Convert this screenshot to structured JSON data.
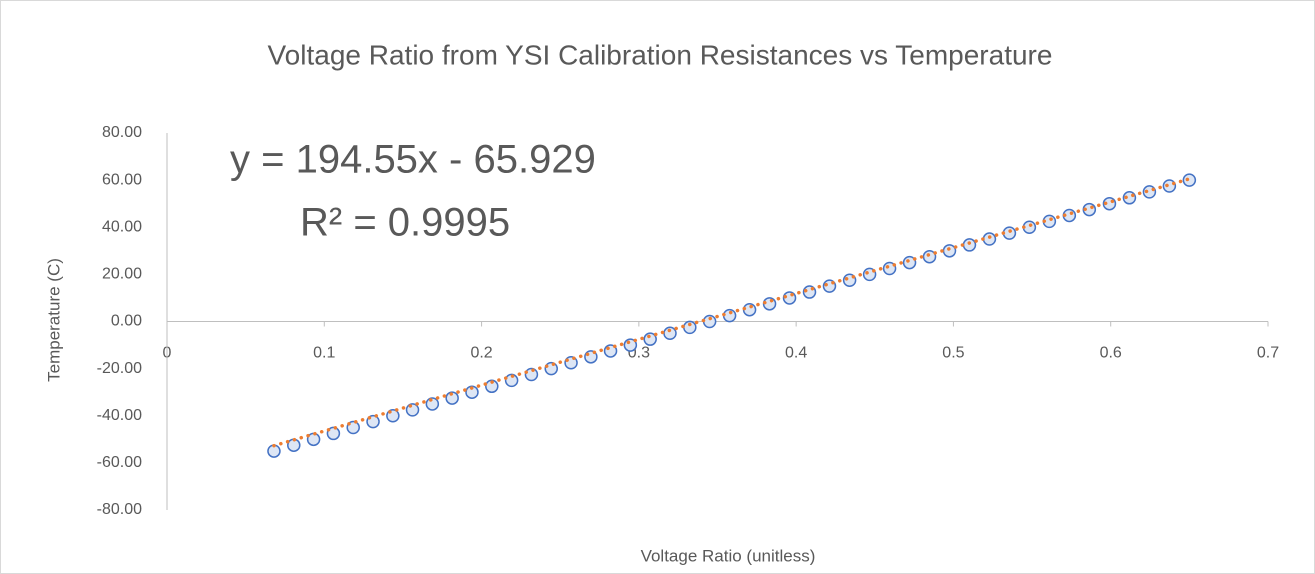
{
  "chart_data": {
    "type": "scatter",
    "title": "Voltage Ratio from YSI Calibration Resistances vs Temperature",
    "x_label": "Voltage Ratio (unitless)",
    "y_label": "Temperature (C)",
    "color": "#4472c4",
    "x": [
      0.068,
      0.0806,
      0.0932,
      0.1058,
      0.1184,
      0.131,
      0.1436,
      0.1561,
      0.1687,
      0.1813,
      0.1939,
      0.2065,
      0.2191,
      0.2317,
      0.2443,
      0.2569,
      0.2695,
      0.282,
      0.2946,
      0.3072,
      0.3198,
      0.3324,
      0.345,
      0.3577,
      0.3704,
      0.3831,
      0.3958,
      0.4085,
      0.4212,
      0.434,
      0.4467,
      0.4594,
      0.4721,
      0.4848,
      0.4975,
      0.5102,
      0.5229,
      0.5356,
      0.5483,
      0.561,
      0.5737,
      0.5864,
      0.5992,
      0.6119,
      0.6246,
      0.6373,
      0.65
    ],
    "values": [
      -55,
      -52.5,
      -50,
      -47.5,
      -45,
      -42.5,
      -40,
      -37.5,
      -35,
      -32.5,
      -30,
      -27.5,
      -25,
      -22.5,
      -20,
      -17.5,
      -15,
      -12.5,
      -10,
      -7.5,
      -5,
      -2.5,
      0,
      2.5,
      5,
      7.5,
      10,
      12.5,
      15,
      17.5,
      20,
      22.5,
      25,
      27.5,
      30,
      32.5,
      35,
      37.5,
      40,
      42.5,
      45,
      47.5,
      50,
      52.5,
      55,
      57.5,
      60
    ],
    "trendline": {
      "color": "#ed7d31",
      "slope": 194.55,
      "intercept": -65.929,
      "equation": "y = 194.55x - 65.929",
      "r_squared": "R² = 0.9995"
    },
    "xlim": [
      0,
      0.7
    ],
    "xticks": [
      0,
      0.1,
      0.2,
      0.3,
      0.4,
      0.5,
      0.6,
      0.7
    ],
    "ylim": [
      -80,
      80
    ],
    "yticks": [
      {
        "value": 80,
        "label": "80.00"
      },
      {
        "value": 60,
        "label": "60.00"
      },
      {
        "value": 40,
        "label": "40.00"
      },
      {
        "value": 20,
        "label": "20.00"
      },
      {
        "value": 0,
        "label": "0.00"
      },
      {
        "value": -20,
        "label": "-20.00"
      },
      {
        "value": -40,
        "label": "-40.00"
      },
      {
        "value": -60,
        "label": "-60.00"
      },
      {
        "value": -80,
        "label": "-80.00"
      }
    ],
    "grid": false
  }
}
